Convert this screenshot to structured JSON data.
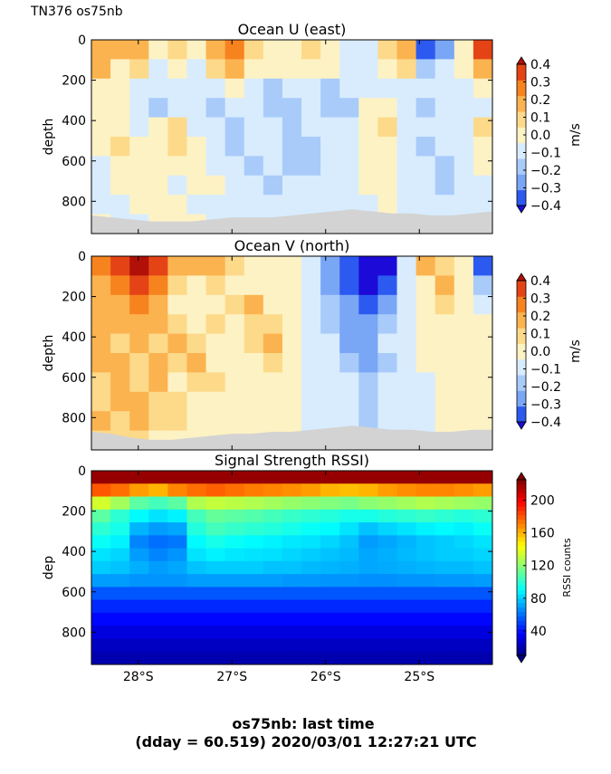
{
  "header": "TN376 os75nb",
  "footer": {
    "line1": "os75nb: last time",
    "line2": "(dday = 60.519) 2020/03/01 12:27:21 UTC"
  },
  "chart_data": [
    {
      "type": "heatmap",
      "title": "Ocean U (east)",
      "ylabel": "depth",
      "ylim": [
        960,
        0
      ],
      "yticks": [
        "0",
        "200",
        "400",
        "600",
        "800"
      ],
      "yticks_values": [
        0,
        200,
        400,
        600,
        800
      ],
      "xlim_lat": [
        -28.5,
        -24.22
      ],
      "colorbar": {
        "label": "m/s",
        "range": [
          -0.4,
          0.4
        ],
        "ticks": [
          "0.4",
          "0.3",
          "0.2",
          "0.1",
          "0.0",
          "−0.1",
          "−0.2",
          "−0.3",
          "−0.4"
        ],
        "ticks_values": [
          0.4,
          0.3,
          0.2,
          0.1,
          0.0,
          -0.1,
          -0.2,
          -0.3,
          -0.4
        ],
        "colors": [
          "#1c0ad8",
          "#2c5af0",
          "#7aa6f6",
          "#a9cbfa",
          "#d8ecfe",
          "#fdf2c4",
          "#fdd98a",
          "#fbb350",
          "#f7831f",
          "#e44415",
          "#b01008"
        ]
      },
      "seafloor_depth": [
        870,
        880,
        890,
        900,
        900,
        900,
        890,
        880,
        880,
        880,
        870,
        860,
        850,
        840,
        850,
        860,
        860,
        870,
        870,
        860,
        850
      ],
      "rows": [
        [
          0.22,
          0.15,
          0.18,
          0.05,
          0.12,
          0.08,
          0.2,
          0.25,
          0.1,
          0.05,
          0.08,
          0.12,
          0.06,
          -0.05,
          -0.08,
          0.12,
          0.22,
          -0.32,
          -0.2,
          0.05,
          0.38
        ],
        [
          0.18,
          0.05,
          0.1,
          -0.05,
          0.02,
          -0.02,
          0.1,
          0.22,
          0.05,
          0.0,
          0.02,
          0.05,
          0.0,
          -0.05,
          -0.08,
          0.05,
          0.1,
          -0.15,
          -0.1,
          0.05,
          0.2
        ],
        [
          0.05,
          0.02,
          -0.05,
          -0.1,
          -0.05,
          -0.08,
          -0.05,
          0.0,
          -0.05,
          -0.12,
          -0.08,
          -0.05,
          -0.12,
          -0.08,
          -0.1,
          -0.05,
          -0.02,
          -0.08,
          -0.1,
          -0.05,
          0.05
        ],
        [
          0.02,
          0.05,
          -0.08,
          -0.12,
          -0.05,
          -0.1,
          -0.12,
          -0.05,
          -0.08,
          -0.15,
          -0.12,
          -0.1,
          -0.15,
          -0.12,
          0.05,
          0.08,
          -0.05,
          -0.12,
          -0.1,
          -0.08,
          -0.05
        ],
        [
          0.08,
          0.05,
          -0.1,
          0.08,
          0.12,
          -0.05,
          -0.1,
          -0.12,
          -0.05,
          -0.1,
          -0.12,
          -0.08,
          -0.1,
          -0.05,
          0.08,
          0.1,
          -0.05,
          -0.1,
          -0.08,
          -0.05,
          0.1
        ],
        [
          0.05,
          0.1,
          0.05,
          0.05,
          0.12,
          0.05,
          -0.05,
          -0.12,
          -0.08,
          -0.05,
          -0.12,
          -0.15,
          -0.1,
          -0.08,
          0.05,
          0.08,
          -0.08,
          -0.12,
          -0.05,
          -0.08,
          0.05
        ],
        [
          -0.05,
          0.05,
          0.08,
          0.02,
          0.05,
          0.0,
          -0.05,
          -0.05,
          -0.12,
          -0.08,
          -0.15,
          -0.12,
          -0.08,
          -0.05,
          0.02,
          0.05,
          -0.05,
          -0.08,
          -0.12,
          -0.05,
          0.02
        ],
        [
          -0.08,
          0.02,
          0.05,
          0.05,
          -0.05,
          0.05,
          0.02,
          -0.05,
          -0.05,
          -0.12,
          -0.1,
          -0.08,
          -0.05,
          -0.08,
          0.05,
          0.02,
          -0.05,
          -0.1,
          -0.15,
          -0.08,
          -0.05
        ],
        [
          -0.05,
          -0.08,
          0.05,
          0.08,
          0.05,
          -0.05,
          -0.05,
          -0.08,
          -0.05,
          -0.05,
          -0.08,
          -0.05,
          -0.05,
          -0.05,
          -0.02,
          0.05,
          -0.05,
          -0.05,
          -0.08,
          -0.05,
          -0.05
        ],
        [
          0.02,
          -0.05,
          -0.05,
          0.02,
          0.05,
          0.02,
          -0.05,
          -0.05,
          -0.02,
          -0.05,
          -0.05,
          -0.02,
          -0.05,
          -0.02,
          -0.05,
          0.02,
          -0.02,
          -0.05,
          -0.05,
          -0.05,
          -0.05
        ]
      ]
    },
    {
      "type": "heatmap",
      "title": "Ocean V (north)",
      "ylabel": "depth",
      "ylim": [
        960,
        0
      ],
      "yticks": [
        "0",
        "200",
        "400",
        "600",
        "800"
      ],
      "yticks_values": [
        0,
        200,
        400,
        600,
        800
      ],
      "xlim_lat": [
        -28.5,
        -24.22
      ],
      "colorbar": {
        "label": "m/s",
        "range": [
          -0.4,
          0.4
        ],
        "ticks": [
          "0.4",
          "0.3",
          "0.2",
          "0.1",
          "0.0",
          "−0.1",
          "−0.2",
          "−0.3",
          "−0.4"
        ],
        "ticks_values": [
          0.4,
          0.3,
          0.2,
          0.1,
          0.0,
          -0.1,
          -0.2,
          -0.3,
          -0.4
        ],
        "colors": [
          "#1c0ad8",
          "#2c5af0",
          "#7aa6f6",
          "#a9cbfa",
          "#d8ecfe",
          "#fdf2c4",
          "#fdd98a",
          "#fbb350",
          "#f7831f",
          "#e44415",
          "#b01008"
        ]
      },
      "seafloor_depth": [
        870,
        880,
        900,
        910,
        910,
        900,
        890,
        880,
        880,
        870,
        870,
        860,
        850,
        840,
        850,
        860,
        860,
        870,
        870,
        860,
        860
      ],
      "rows": [
        [
          0.25,
          0.4,
          0.42,
          0.38,
          0.22,
          0.15,
          0.18,
          0.1,
          0.05,
          0.08,
          0.02,
          -0.05,
          -0.25,
          -0.3,
          -0.42,
          -0.4,
          -0.1,
          0.22,
          0.12,
          0.05,
          -0.3
        ],
        [
          0.22,
          0.3,
          0.38,
          0.3,
          0.12,
          0.08,
          0.1,
          0.05,
          0.02,
          0.05,
          0.0,
          -0.05,
          -0.2,
          -0.28,
          -0.38,
          -0.35,
          -0.08,
          0.08,
          0.2,
          0.05,
          -0.15
        ],
        [
          0.15,
          0.22,
          0.28,
          0.18,
          0.08,
          0.05,
          0.08,
          0.1,
          0.15,
          0.05,
          0.0,
          -0.08,
          -0.15,
          -0.25,
          -0.28,
          -0.22,
          -0.05,
          0.05,
          0.1,
          0.05,
          -0.05
        ],
        [
          0.18,
          0.15,
          0.2,
          0.15,
          0.1,
          0.08,
          0.12,
          0.05,
          0.12,
          0.1,
          0.02,
          -0.05,
          -0.12,
          -0.22,
          -0.25,
          -0.12,
          -0.05,
          0.05,
          0.08,
          0.02,
          0.05
        ],
        [
          0.2,
          0.12,
          0.15,
          0.12,
          0.15,
          0.1,
          0.05,
          0.05,
          0.1,
          0.15,
          0.05,
          -0.05,
          -0.08,
          -0.18,
          -0.25,
          -0.1,
          -0.05,
          0.02,
          0.05,
          0.05,
          0.02
        ],
        [
          0.15,
          0.2,
          0.1,
          0.15,
          0.1,
          0.15,
          0.08,
          0.05,
          0.05,
          0.12,
          0.05,
          -0.02,
          -0.05,
          -0.12,
          -0.2,
          -0.12,
          -0.05,
          0.0,
          0.05,
          0.02,
          0.05
        ],
        [
          0.12,
          0.15,
          0.12,
          0.18,
          0.08,
          0.1,
          0.1,
          0.05,
          0.05,
          0.08,
          0.02,
          -0.05,
          -0.05,
          -0.1,
          -0.15,
          -0.1,
          -0.05,
          -0.05,
          0.02,
          0.05,
          0.02
        ],
        [
          0.1,
          0.18,
          0.15,
          0.12,
          0.1,
          0.05,
          0.05,
          0.08,
          0.05,
          0.05,
          0.05,
          -0.02,
          -0.05,
          -0.08,
          -0.15,
          -0.08,
          -0.05,
          -0.02,
          0.05,
          0.02,
          0.05
        ],
        [
          0.15,
          0.12,
          0.18,
          0.1,
          0.12,
          0.08,
          0.05,
          0.05,
          0.05,
          0.02,
          0.02,
          -0.05,
          -0.05,
          -0.05,
          -0.12,
          -0.05,
          -0.05,
          -0.05,
          0.02,
          0.05,
          0.02
        ],
        [
          0.1,
          0.1,
          0.12,
          0.08,
          0.05,
          0.05,
          0.05,
          0.02,
          0.05,
          0.02,
          0.0,
          -0.02,
          -0.05,
          -0.05,
          -0.08,
          -0.05,
          -0.02,
          -0.05,
          0.02,
          0.02,
          0.05
        ]
      ]
    },
    {
      "type": "heatmap",
      "title": "Signal Strength RSSI)",
      "ylabel": "dep",
      "ylim": [
        960,
        0
      ],
      "yticks": [
        "0",
        "200",
        "400",
        "600",
        "800"
      ],
      "yticks_values": [
        0,
        200,
        400,
        600,
        800
      ],
      "xlim_lat": [
        -28.5,
        -24.22
      ],
      "xticks": [
        "28°S",
        "27°S",
        "26°S",
        "25°S"
      ],
      "xticks_values": [
        -28,
        -27,
        -26,
        -25
      ],
      "colorbar": {
        "label": "RSSI counts",
        "range": [
          10,
          225
        ],
        "ticks": [
          "200",
          "160",
          "120",
          "80",
          "40"
        ],
        "ticks_values": [
          200,
          160,
          120,
          80,
          40
        ]
      },
      "rows": [
        [
          220,
          220,
          220,
          220,
          220,
          220,
          220,
          220,
          220,
          220,
          220,
          220,
          220,
          220,
          220,
          220,
          220,
          220,
          220,
          220,
          220
        ],
        [
          180,
          175,
          165,
          160,
          170,
          175,
          178,
          175,
          172,
          170,
          168,
          165,
          160,
          158,
          160,
          165,
          168,
          170,
          170,
          168,
          165
        ],
        [
          135,
          125,
          110,
          105,
          110,
          128,
          132,
          130,
          128,
          125,
          122,
          120,
          118,
          116,
          120,
          122,
          125,
          128,
          126,
          124,
          122
        ],
        [
          110,
          100,
          90,
          85,
          88,
          105,
          112,
          110,
          108,
          105,
          102,
          100,
          98,
          95,
          95,
          98,
          100,
          102,
          100,
          98,
          100
        ],
        [
          100,
          95,
          75,
          70,
          72,
          98,
          105,
          102,
          100,
          98,
          95,
          92,
          90,
          85,
          78,
          82,
          85,
          88,
          90,
          88,
          92
        ],
        [
          92,
          88,
          65,
          60,
          62,
          90,
          95,
          92,
          90,
          88,
          86,
          85,
          82,
          78,
          70,
          72,
          75,
          78,
          80,
          82,
          85
        ],
        [
          85,
          82,
          70,
          65,
          68,
          85,
          88,
          86,
          85,
          84,
          82,
          80,
          78,
          76,
          72,
          74,
          76,
          78,
          80,
          80,
          82
        ],
        [
          80,
          78,
          74,
          70,
          72,
          78,
          80,
          80,
          80,
          78,
          78,
          76,
          75,
          74,
          72,
          73,
          74,
          75,
          76,
          76,
          78
        ],
        [
          70,
          70,
          68,
          68,
          68,
          70,
          70,
          70,
          70,
          70,
          69,
          69,
          68,
          68,
          67,
          67,
          68,
          68,
          69,
          69,
          70
        ],
        [
          55,
          55,
          55,
          55,
          55,
          55,
          55,
          55,
          55,
          55,
          55,
          55,
          55,
          55,
          55,
          55,
          55,
          55,
          55,
          55,
          55
        ],
        [
          45,
          45,
          45,
          45,
          45,
          45,
          45,
          45,
          45,
          45,
          45,
          45,
          45,
          45,
          45,
          45,
          45,
          45,
          45,
          45,
          45
        ],
        [
          38,
          38,
          38,
          38,
          38,
          38,
          38,
          38,
          38,
          38,
          38,
          38,
          38,
          38,
          38,
          38,
          38,
          38,
          38,
          38,
          38
        ],
        [
          30,
          30,
          30,
          30,
          30,
          30,
          30,
          30,
          30,
          30,
          30,
          30,
          30,
          30,
          30,
          30,
          30,
          30,
          30,
          30,
          30
        ],
        [
          24,
          24,
          24,
          24,
          24,
          24,
          24,
          24,
          24,
          24,
          24,
          24,
          24,
          24,
          24,
          24,
          24,
          24,
          24,
          24,
          24
        ],
        [
          20,
          20,
          20,
          20,
          20,
          20,
          20,
          20,
          20,
          20,
          20,
          20,
          20,
          20,
          20,
          20,
          20,
          20,
          20,
          20,
          20
        ]
      ]
    }
  ]
}
